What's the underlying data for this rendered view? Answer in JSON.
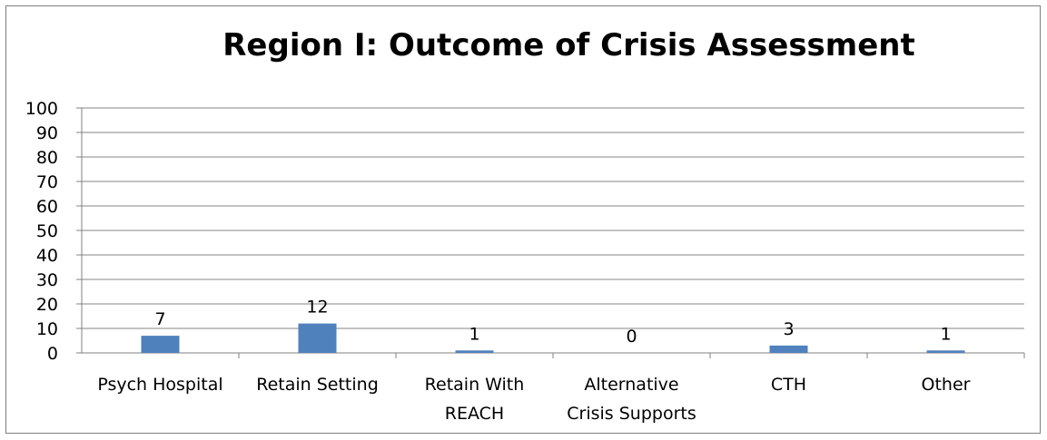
{
  "chart_data": {
    "type": "bar",
    "title": "Region I: Outcome of Crisis Assessment",
    "categories": [
      [
        "Psych Hospital"
      ],
      [
        "Retain Setting"
      ],
      [
        "Retain With",
        "REACH"
      ],
      [
        "Alternative",
        "Crisis Supports"
      ],
      [
        "CTH"
      ],
      [
        "Other"
      ]
    ],
    "values": [
      7,
      12,
      1,
      0,
      3,
      1
    ],
    "ylim": [
      0,
      100
    ],
    "yticks": [
      0,
      10,
      20,
      30,
      40,
      50,
      60,
      70,
      80,
      90,
      100
    ],
    "grid": true,
    "legend": "none",
    "bar_color": "#4f81bd"
  }
}
